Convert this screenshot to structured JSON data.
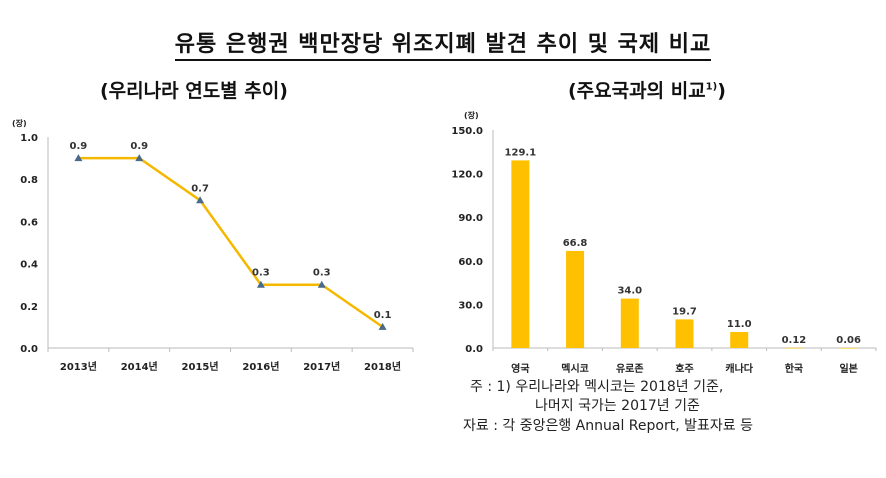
{
  "title": "유통 은행권 백만장당 위조지폐 발견 추이 및 국제 비교",
  "chart_data": [
    {
      "type": "line",
      "title": "(우리나라 연도별 추이)",
      "ylabel": "(장)",
      "categories": [
        "2013년",
        "2014년",
        "2015년",
        "2016년",
        "2017년",
        "2018년"
      ],
      "values": [
        0.9,
        0.9,
        0.7,
        0.3,
        0.3,
        0.1
      ],
      "data_labels": [
        "0.9",
        "0.9",
        "0.7",
        "0.3",
        "0.3",
        "0.1"
      ],
      "ylim": [
        0,
        1.0
      ],
      "yticks": [
        "0.0",
        "0.2",
        "0.4",
        "0.6",
        "0.8",
        "1.0"
      ],
      "color": "#F5B800",
      "marker_color": "#4A6A8A"
    },
    {
      "type": "bar",
      "title": "(주요국과의 비교",
      "title_sup": "1)",
      "title_end": ")",
      "ylabel": "(장)",
      "categories": [
        "영국",
        "멕시코",
        "유로존",
        "호주",
        "캐나다",
        "한국",
        "일본"
      ],
      "values": [
        129.1,
        66.8,
        34.0,
        19.7,
        11.0,
        0.12,
        0.06
      ],
      "data_labels": [
        "129.1",
        "66.8",
        "34.0",
        "19.7",
        "11.0",
        "0.12",
        "0.06"
      ],
      "highlight_label_color": "#2222CC",
      "highlight_index": 5,
      "ylim": [
        0,
        150
      ],
      "yticks": [
        "0.0",
        "30.0",
        "60.0",
        "90.0",
        "120.0",
        "150.0"
      ],
      "color": "#FFC000"
    }
  ],
  "notes": {
    "line1": "주 : 1) 우리나라와 멕시코는 2018년 기준,",
    "line2": "나머지 국가는 2017년 기준",
    "line3": "자료 : 각 중앙은행 Annual Report, 발표자료 등"
  }
}
